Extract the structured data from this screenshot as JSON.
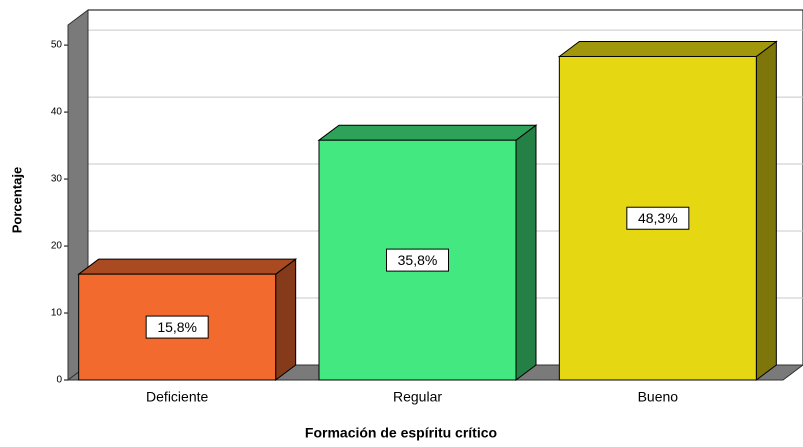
{
  "chart_data": {
    "type": "bar3d",
    "categories": [
      "Deficiente",
      "Regular",
      "Bueno"
    ],
    "values": [
      15.8,
      35.8,
      48.3
    ],
    "value_labels": [
      "15,8%",
      "35,8%",
      "48,3%"
    ],
    "colors": [
      "#f26a2e",
      "#43e880",
      "#e5d712"
    ],
    "xlabel": "Formación de espíritu crítico",
    "ylabel": "Porcentaje",
    "ylim": [
      0,
      53
    ],
    "yticks": [
      0,
      10,
      20,
      30,
      40,
      50
    ],
    "grid": true
  }
}
